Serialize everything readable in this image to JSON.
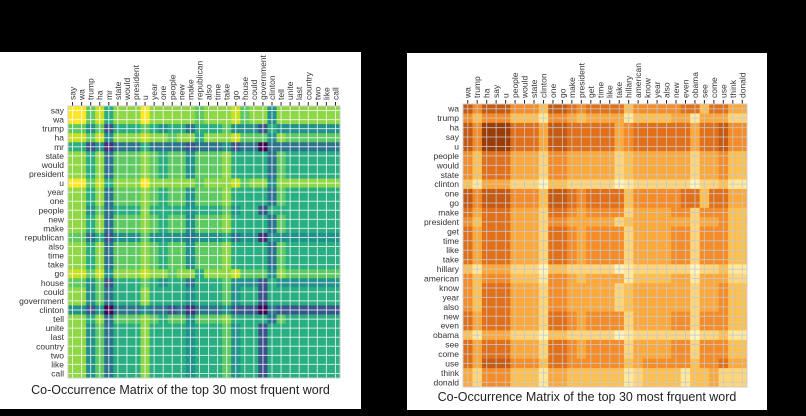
{
  "chart_data": [
    {
      "type": "heatmap",
      "title": "Co-Occurrence Matrix of the top 30 most frquent word",
      "colormap": "viridis",
      "value_scale": "relative intensity 0-9 (estimated, no colorbar shown)",
      "labels": [
        "say",
        "wa",
        "trump",
        "ha",
        "mr",
        "state",
        "would",
        "president",
        "u",
        "year",
        "one",
        "people",
        "new",
        "make",
        "republican",
        "also",
        "time",
        "take",
        "go",
        "house",
        "could",
        "government",
        "clinton",
        "tell",
        "unite",
        "last",
        "country",
        "two",
        "like",
        "call"
      ],
      "matrix_rows": [
        "996857779777776777867747777777",
        "996857779777776777867747777777",
        "664625556545535556444254444444",
        "886847778776775777866647666666",
        "552413335333323334233033333333",
        "775736667656646667555536555555",
        "775736667656646667555536555555",
        "775736667656646667555536555555",
        "996857779777776777867747777777",
        "775736667656646667555536555555",
        "775736667656646667555536555555",
        "774635557555545556455255555555",
        "775736667656646667555536555555",
        "775736667656646667555536555555",
        "663524446444434445344144444444",
        "775736667656646667555536555555",
        "775736667656646667555536555555",
        "775736667656646667555536555555",
        "886847778776775777866647666666",
        "664625556545535556444254444444",
        "774635557555545556455255555555",
        "774635557555545556455255555555",
        "442403334332313334222032222222",
        "775736667656646667555536555555",
        "774635557555545556455255555555",
        "774635557555545556455255555555",
        "774635557555545556455255555555",
        "774635557555545556455255555555",
        "774635557555545556455255555555",
        "774635557555545556455255555555"
      ]
    },
    {
      "type": "heatmap",
      "title": "Co-Occurrence Matrix of the top 30 most frquent word",
      "colormap": "YlOrBr",
      "value_scale": "relative intensity 0-9 (estimated, no colorbar shown)",
      "labels": [
        "wa",
        "trump",
        "ha",
        "say",
        "u",
        "people",
        "would",
        "state",
        "clinton",
        "one",
        "go",
        "make",
        "president",
        "get",
        "time",
        "like",
        "take",
        "hillary",
        "american",
        "know",
        "year",
        "also",
        "new",
        "even",
        "obama",
        "see",
        "come",
        "use",
        "think",
        "donald"
      ],
      "matrix_rows": [
        "868886664887677774666667747755",
        "646664442665455552444455255533",
        "869997775887777756777777577866",
        "869997775887777756777777577866",
        "869997775887777756777777577866",
        "647775553665555534555555355644",
        "647775553665555534555555355644",
        "647775553665555534555555355644",
        "425553331443333312333333133422",
        "868886664887677774666667747755",
        "868886664887677774666667747755",
        "757775553776566663555566366644",
        "647775553665555534555555355644",
        "757775553776566663555566366644",
        "757775553776566663555566366644",
        "757775553776566663555566366644",
        "757775553776566663555566366644",
        "425553331443333312333333133422",
        "646664442665455552444455255533",
        "647775553665555534555555355644",
        "647775553665555534555555355644",
        "647775553665555534555555355644",
        "757775553776566663555566366644",
        "757775553776566663555566366644",
        "425553331443333312333333133422",
        "757775553776566663555566366644",
        "757775553776566663555566366644",
        "758886664776666664566666466755",
        "536664442554444442344442445333",
        "536664442554444442344442445333"
      ]
    }
  ]
}
